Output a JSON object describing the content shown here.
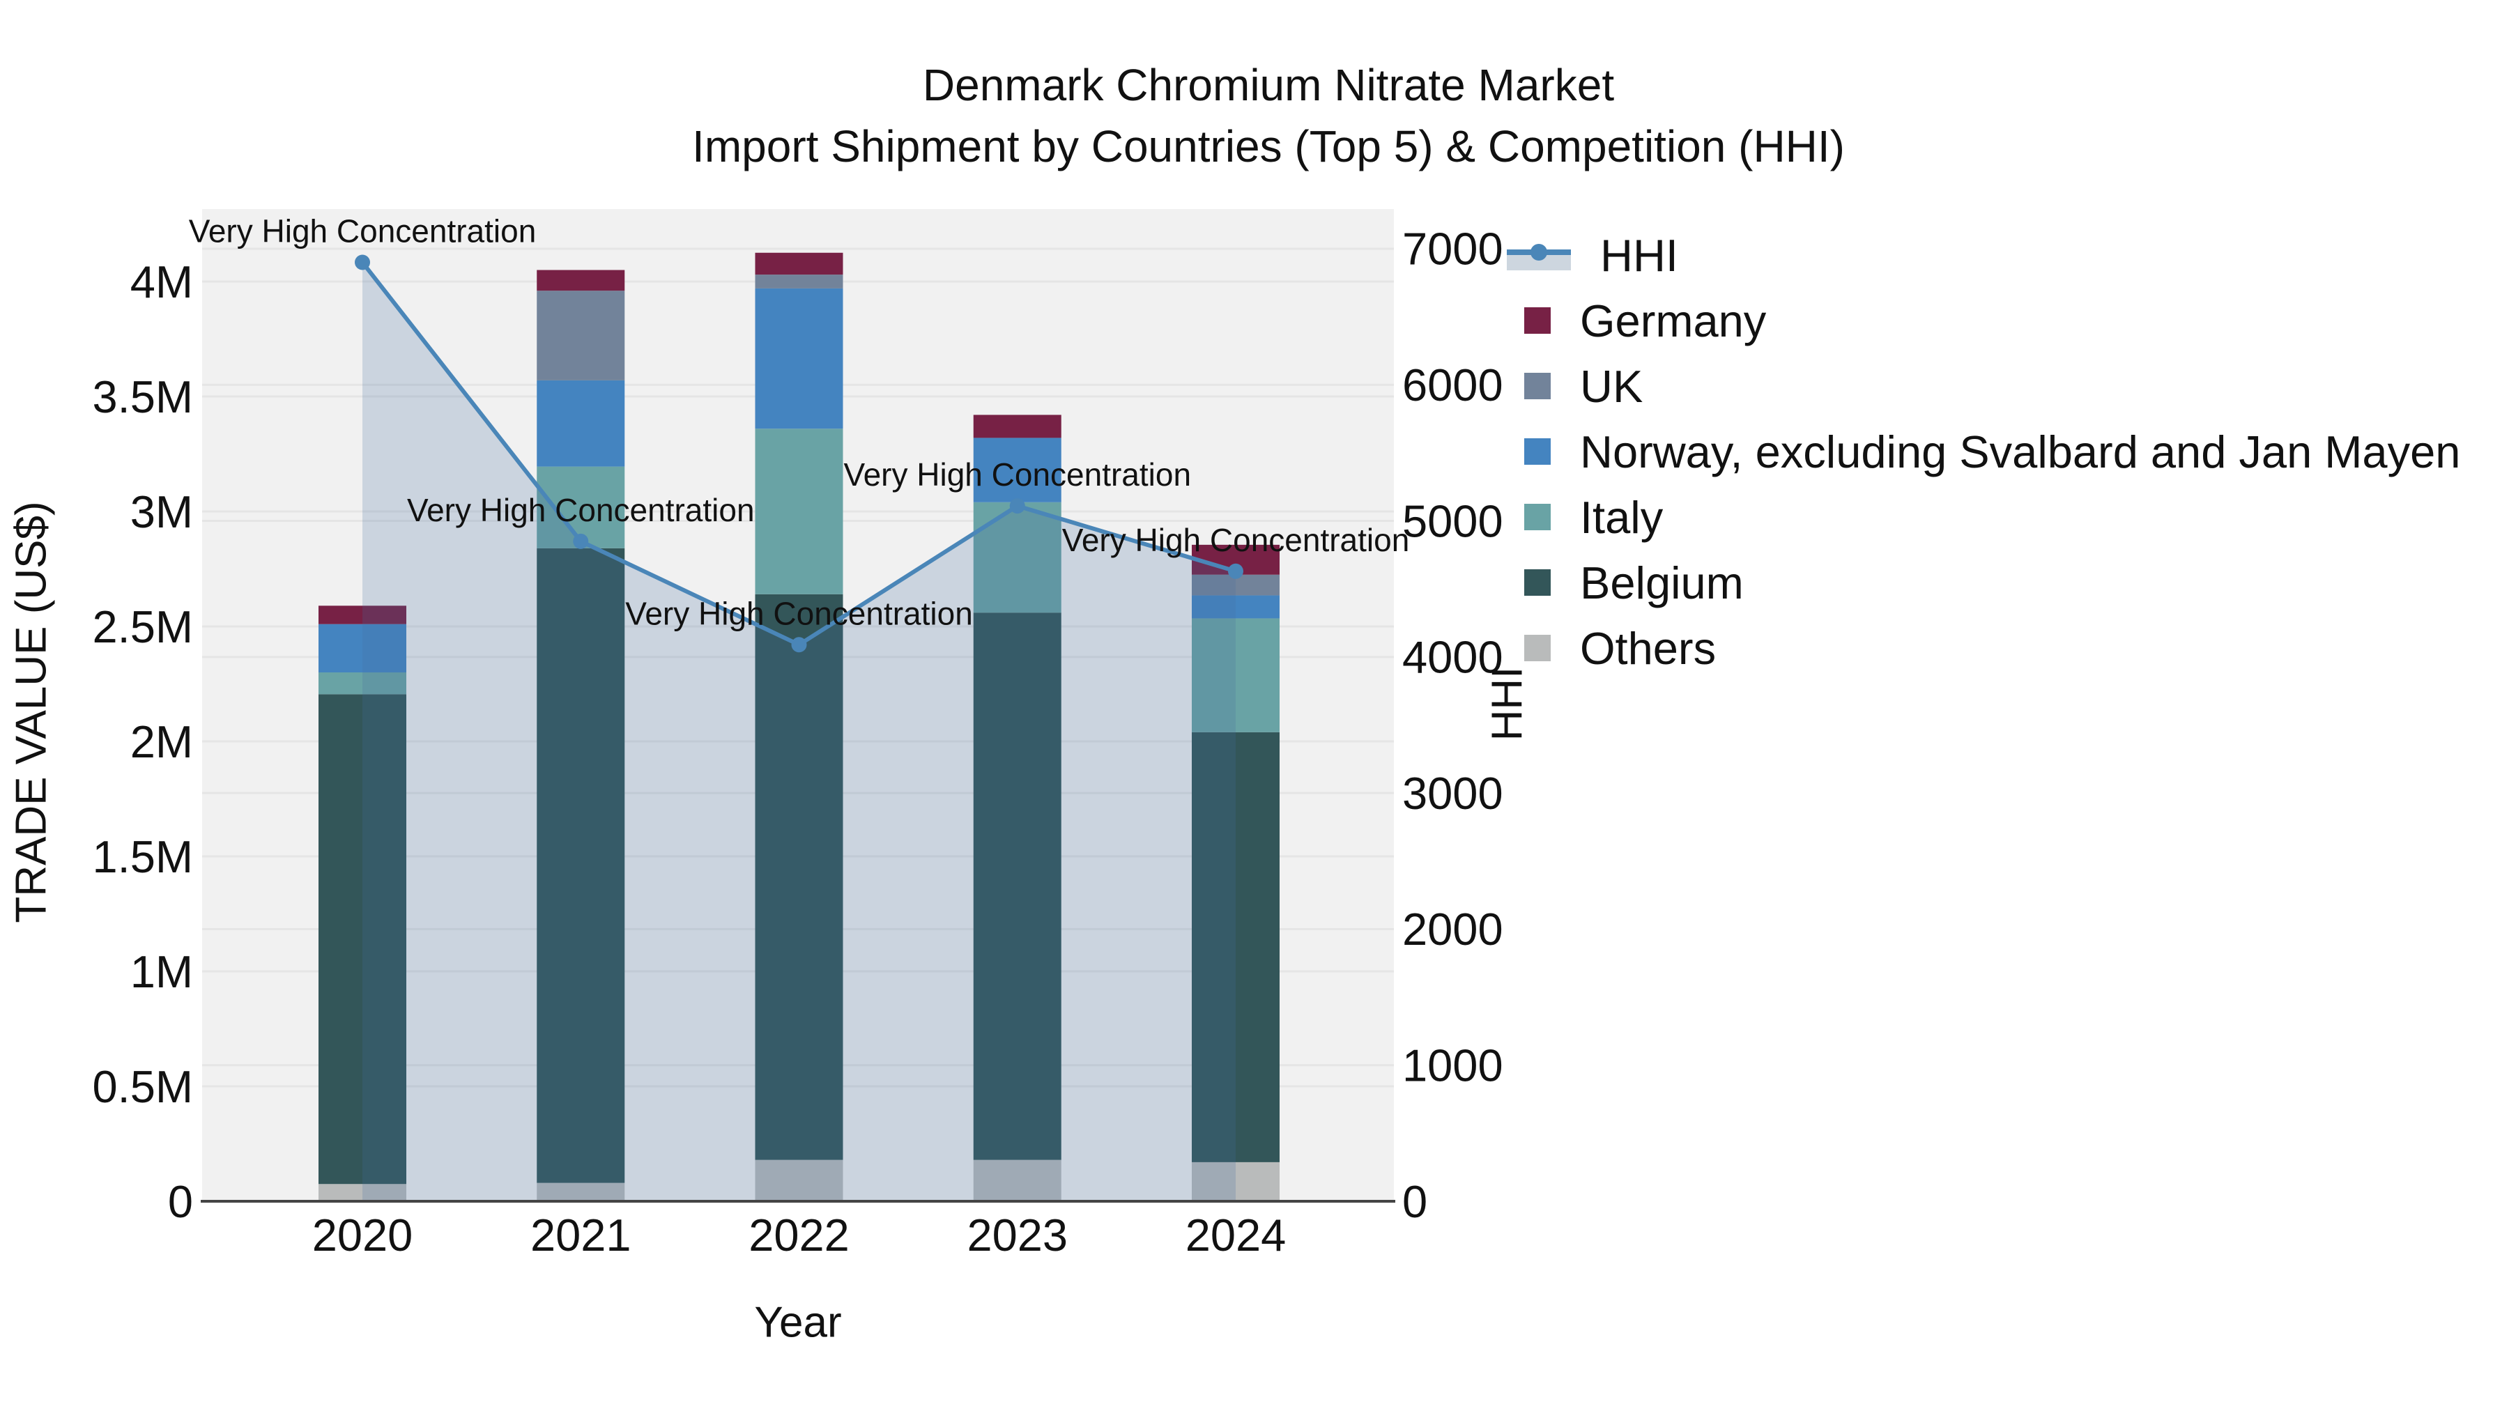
{
  "title": {
    "line1": "Denmark Chromium Nitrate Market",
    "line2": "Import Shipment by Countries (Top 5) & Competition (HHI)"
  },
  "axes": {
    "x_title": "Year",
    "y_left_title": "TRADE VALUE (US$)",
    "y_right_title": "HHI",
    "x_tick_labels": [
      "2020",
      "2021",
      "2022",
      "2023",
      "2024"
    ],
    "y_left_tick_labels": [
      "0",
      "0.5M",
      "1M",
      "1.5M",
      "2M",
      "2.5M",
      "3M",
      "3.5M",
      "4M"
    ],
    "y_left_tick_values": [
      0,
      500000,
      1000000,
      1500000,
      2000000,
      2500000,
      3000000,
      3500000,
      4000000
    ],
    "y_right_tick_labels": [
      "0",
      "1000",
      "2000",
      "3000",
      "4000",
      "5000",
      "6000",
      "7000"
    ],
    "y_right_tick_values": [
      0,
      1000,
      2000,
      3000,
      4000,
      5000,
      6000,
      7000
    ]
  },
  "legend": {
    "items": [
      {
        "label": "HHI",
        "type": "line",
        "color": "#4a86b8"
      },
      {
        "label": "Germany",
        "type": "square",
        "color": "#772145"
      },
      {
        "label": "UK",
        "type": "square",
        "color": "#72839a"
      },
      {
        "label": "Norway, excluding Svalbard and Jan Mayen",
        "type": "square",
        "color": "#4484c0"
      },
      {
        "label": "Italy",
        "type": "square",
        "color": "#69a3a5"
      },
      {
        "label": "Belgium",
        "type": "square",
        "color": "#335659"
      },
      {
        "label": "Others",
        "type": "square",
        "color": "#b9bbbb"
      }
    ]
  },
  "chart_data": {
    "type": "bar+line",
    "title": "Denmark Chromium Nitrate Market — Import Shipment by Countries (Top 5) & Competition (HHI)",
    "categories": [
      "2020",
      "2021",
      "2022",
      "2023",
      "2024"
    ],
    "xlabel": "Year",
    "ylabel_left": "TRADE VALUE (US$)",
    "ylabel_right": "HHI",
    "ylim_left": [
      0,
      4350000
    ],
    "ylim_right": [
      0,
      7320
    ],
    "grid": true,
    "legend_position": "right",
    "series": [
      {
        "name": "Germany",
        "color": "#772145",
        "values": [
          80000,
          90000,
          95000,
          100000,
          130000
        ]
      },
      {
        "name": "UK",
        "color": "#72839a",
        "values": [
          0,
          390000,
          60000,
          0,
          90000
        ]
      },
      {
        "name": "Norway, excluding Svalbard and Jan Mayen",
        "color": "#4484c0",
        "values": [
          210000,
          375000,
          610000,
          280000,
          100000
        ]
      },
      {
        "name": "Italy",
        "color": "#69a3a5",
        "values": [
          95000,
          355000,
          720000,
          480000,
          495000
        ]
      },
      {
        "name": "Belgium",
        "color": "#335659",
        "values": [
          2130000,
          2760000,
          2460000,
          2380000,
          1870000
        ]
      },
      {
        "name": "Others",
        "color": "#b9bbbb",
        "values": [
          75000,
          80000,
          180000,
          180000,
          170000
        ]
      }
    ],
    "stack_order_bottom_to_top": [
      "Others",
      "Belgium",
      "Italy",
      "Norway, excluding Svalbard and Jan Mayen",
      "UK",
      "Germany"
    ],
    "bar_totals": [
      2590000,
      4050000,
      4125000,
      3420000,
      2855000
    ],
    "hhi_line": {
      "name": "HHI",
      "color": "#4a86b8",
      "area_fill": "rgba(70,110,160,0.22)",
      "values": [
        6900,
        4850,
        4090,
        5110,
        4630
      ]
    },
    "annotation_text": "Very High Concentration",
    "annotations": [
      {
        "x": "2020",
        "text": "Very High Concentration"
      },
      {
        "x": "2021",
        "text": "Very High Concentration"
      },
      {
        "x": "2022",
        "text": "Very High Concentration"
      },
      {
        "x": "2023",
        "text": "Very High Concentration"
      },
      {
        "x": "2024",
        "text": "Very High Concentration"
      }
    ],
    "colors": {
      "plot_background": "#f1f1f1",
      "gridline": "#e5e5e5",
      "axis_line": "#444444"
    }
  }
}
